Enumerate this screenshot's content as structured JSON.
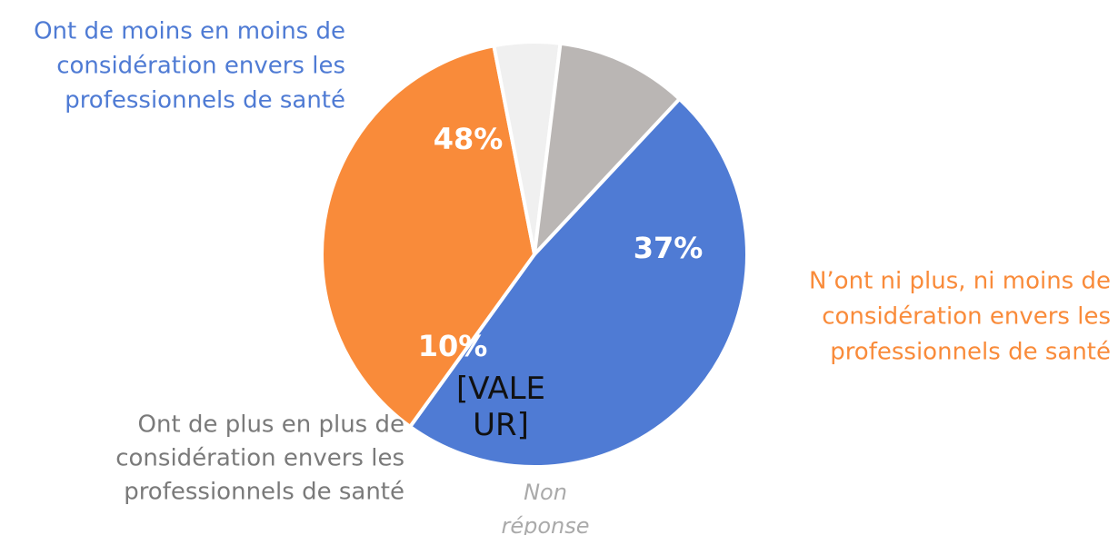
{
  "chart_data": {
    "type": "pie",
    "categories": [
      [
        "Ont de moins en moins de",
        "considération envers les",
        "professionnels de santé"
      ],
      [
        "N’ont ni plus, ni moins de",
        "considération envers les",
        "professionnels de santé"
      ],
      [
        "Non",
        "réponse"
      ],
      [
        "Ont de plus en plus de",
        "considération envers les",
        "professionnels de santé"
      ]
    ],
    "values": [
      48,
      37,
      5,
      10
    ],
    "value_labels": [
      "48%",
      "37%",
      "[VALEUR]",
      "10%"
    ],
    "colors": [
      "#4f7bd4",
      "#f98b3a",
      "#f0f0f0",
      "#bab6b4"
    ]
  }
}
